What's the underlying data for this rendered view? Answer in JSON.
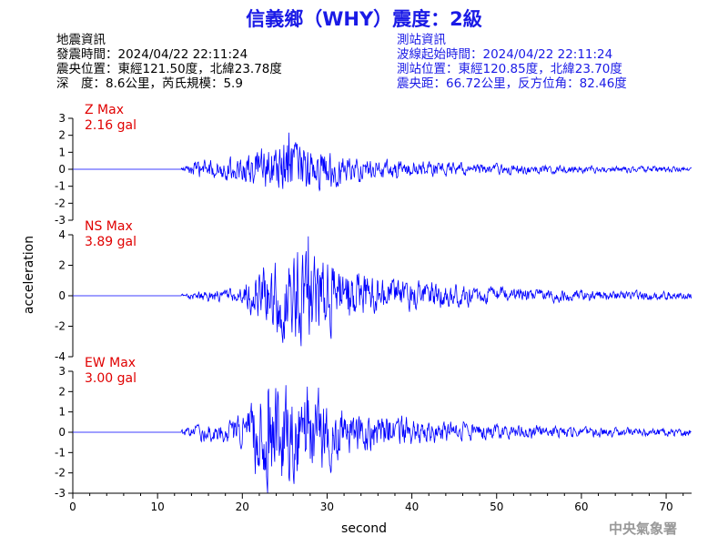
{
  "title": "信義鄉（WHY）震度：2級",
  "quake_info": {
    "heading": "地震資訊",
    "origin_time": "發震時間：2024/04/22 22:11:24",
    "epicenter": "震央位置：東經121.50度，北緯23.78度",
    "depth_magnitude": "深　度：8.6公里，芮氏規模：5.9"
  },
  "station_info": {
    "heading": "測站資訊",
    "waveform_start": "波線起始時間：2024/04/22 22:11:24",
    "station_location": "測站位置：東經120.85度，北緯23.70度",
    "distance_azimuth": "震央距：66.72公里，反方位角：82.46度"
  },
  "agency": "中央氣象署",
  "colors": {
    "trace": "#0000ff",
    "title": "#1a1ae6",
    "max_label": "#e00000",
    "agency": "#999999"
  },
  "chart_data": {
    "type": "line",
    "xlabel": "second",
    "ylabel": "acceleration",
    "xlim": [
      0,
      73
    ],
    "x_ticks": [
      0,
      10,
      20,
      30,
      40,
      50,
      60,
      70
    ],
    "series": [
      {
        "name": "Z",
        "max_label": "Z Max",
        "max_value": "2.16 gal",
        "peak": 2.16,
        "ylim": [
          -3,
          3
        ],
        "y_ticks": [
          3,
          2,
          1,
          0,
          -1,
          -2,
          -3
        ],
        "onset": 12.8,
        "envelope": [
          [
            12.8,
            0.15
          ],
          [
            15,
            0.6
          ],
          [
            18,
            0.7
          ],
          [
            20,
            0.95
          ],
          [
            22,
            1.3
          ],
          [
            24,
            1.7
          ],
          [
            25.5,
            2.16
          ],
          [
            27,
            1.7
          ],
          [
            29,
            1.4
          ],
          [
            31,
            1.2
          ],
          [
            33,
            0.8
          ],
          [
            36,
            0.7
          ],
          [
            40,
            0.6
          ],
          [
            45,
            0.45
          ],
          [
            50,
            0.35
          ],
          [
            55,
            0.3
          ],
          [
            60,
            0.25
          ],
          [
            65,
            0.22
          ],
          [
            73,
            0.18
          ]
        ]
      },
      {
        "name": "NS",
        "max_label": "NS Max",
        "max_value": "3.89 gal",
        "peak": 3.89,
        "ylim": [
          -4,
          4
        ],
        "y_ticks": [
          4,
          2,
          0,
          -2,
          -4
        ],
        "onset": 12.8,
        "envelope": [
          [
            12.8,
            0.15
          ],
          [
            15,
            0.4
          ],
          [
            18,
            0.5
          ],
          [
            20,
            0.8
          ],
          [
            22,
            2.0
          ],
          [
            24,
            2.6
          ],
          [
            26,
            3.1
          ],
          [
            27.8,
            3.89
          ],
          [
            29,
            3.0
          ],
          [
            31,
            2.5
          ],
          [
            33,
            2.0
          ],
          [
            35,
            1.5
          ],
          [
            38,
            1.2
          ],
          [
            42,
            1.0
          ],
          [
            46,
            0.8
          ],
          [
            50,
            0.6
          ],
          [
            55,
            0.5
          ],
          [
            60,
            0.45
          ],
          [
            65,
            0.35
          ],
          [
            73,
            0.3
          ]
        ]
      },
      {
        "name": "EW",
        "max_label": "EW Max",
        "max_value": "3.00 gal",
        "peak": 3.0,
        "ylim": [
          -3,
          3
        ],
        "y_ticks": [
          3,
          2,
          1,
          0,
          -1,
          -2,
          -3
        ],
        "onset": 12.8,
        "envelope": [
          [
            12.8,
            0.15
          ],
          [
            15,
            0.5
          ],
          [
            18,
            0.6
          ],
          [
            20,
            0.9
          ],
          [
            22,
            2.5
          ],
          [
            23,
            3.0
          ],
          [
            25,
            2.6
          ],
          [
            27,
            2.7
          ],
          [
            29,
            2.2
          ],
          [
            31,
            1.7
          ],
          [
            33,
            1.3
          ],
          [
            36,
            1.0
          ],
          [
            40,
            0.8
          ],
          [
            45,
            0.6
          ],
          [
            50,
            0.4
          ],
          [
            55,
            0.35
          ],
          [
            60,
            0.3
          ],
          [
            65,
            0.25
          ],
          [
            73,
            0.2
          ]
        ]
      }
    ]
  }
}
